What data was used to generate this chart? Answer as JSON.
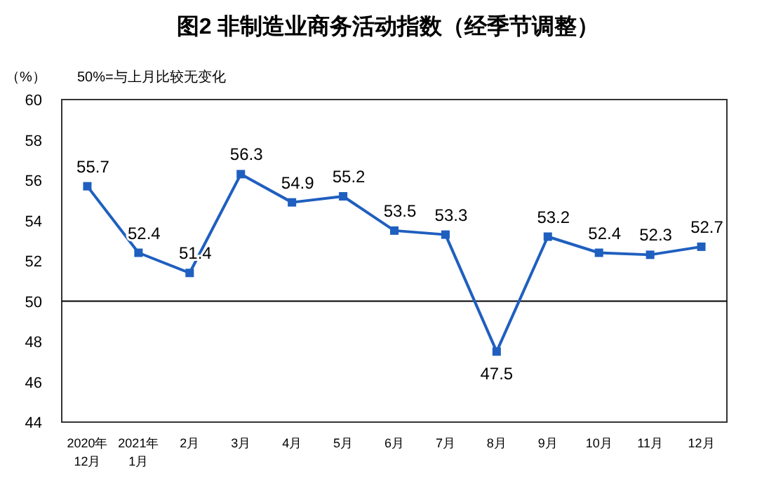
{
  "chart_data": {
    "type": "line",
    "title": "图2  非制造业商务活动指数（经季节调整）",
    "ylabel": "（%）",
    "annotations": [
      "50%=与上月比较无变化"
    ],
    "categories": [
      "2020年\n12月",
      "2021年\n1月",
      "2月",
      "3月",
      "4月",
      "5月",
      "6月",
      "7月",
      "8月",
      "9月",
      "10月",
      "11月",
      "12月"
    ],
    "series": [
      {
        "color": "#1f5fbf",
        "values": [
          55.7,
          52.4,
          51.4,
          56.3,
          54.9,
          55.2,
          53.5,
          53.3,
          47.5,
          53.2,
          52.4,
          52.3,
          52.7
        ]
      }
    ],
    "ylim": [
      44,
      60
    ],
    "yticks": [
      44,
      46,
      48,
      50,
      52,
      54,
      56,
      58,
      60
    ],
    "ref_lines": [
      {
        "axis": "y",
        "value": 50,
        "color": "#000000"
      }
    ],
    "data_labels": true,
    "marker": "square",
    "line_style": "solid",
    "grid": false
  }
}
